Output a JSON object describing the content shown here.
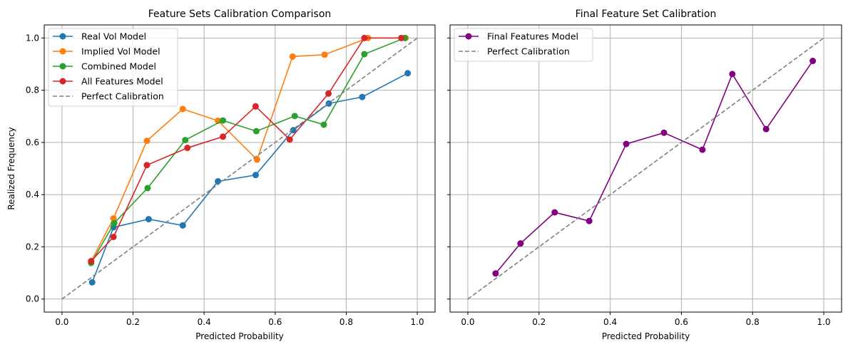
{
  "chart_data": [
    {
      "type": "line",
      "title": "Feature Sets Calibration Comparison",
      "xlabel": "Predicted Probability",
      "ylabel": "Realized Frequency",
      "xlim": [
        -0.05,
        1.05
      ],
      "ylim": [
        -0.05,
        1.05
      ],
      "xticks": [
        "0.0",
        "0.2",
        "0.4",
        "0.6",
        "0.8",
        "1.0"
      ],
      "yticks": [
        "0.0",
        "0.2",
        "0.4",
        "0.6",
        "0.8",
        "1.0"
      ],
      "grid": true,
      "legend_position": "top-left",
      "series": [
        {
          "name": "Real Vol Model",
          "color": "#1f77b4",
          "marker": "circle",
          "x": [
            0.085,
            0.145,
            0.244,
            0.34,
            0.439,
            0.545,
            0.651,
            0.751,
            0.845,
            0.973
          ],
          "y": [
            0.064,
            0.275,
            0.306,
            0.282,
            0.451,
            0.475,
            0.647,
            0.749,
            0.774,
            0.865
          ]
        },
        {
          "name": "Implied Vol Model",
          "color": "#ff7f0e",
          "marker": "circle",
          "x": [
            0.082,
            0.145,
            0.239,
            0.34,
            0.439,
            0.549,
            0.649,
            0.739,
            0.861,
            0.967
          ],
          "y": [
            0.145,
            0.309,
            0.606,
            0.728,
            0.683,
            0.534,
            0.929,
            0.936,
            1.0,
            1.0
          ]
        },
        {
          "name": "Combined Model",
          "color": "#2ca02c",
          "marker": "circle",
          "x": [
            0.082,
            0.147,
            0.241,
            0.347,
            0.453,
            0.547,
            0.655,
            0.737,
            0.851,
            0.965
          ],
          "y": [
            0.138,
            0.291,
            0.425,
            0.609,
            0.684,
            0.643,
            0.701,
            0.668,
            0.938,
            1.0
          ]
        },
        {
          "name": "All Features Model",
          "color": "#d62728",
          "marker": "circle",
          "x": [
            0.082,
            0.145,
            0.239,
            0.353,
            0.453,
            0.545,
            0.641,
            0.75,
            0.851,
            0.955
          ],
          "y": [
            0.145,
            0.238,
            0.513,
            0.579,
            0.622,
            0.738,
            0.611,
            0.787,
            1.0,
            1.0
          ]
        },
        {
          "name": "Perfect Calibration",
          "color": "#808080",
          "style": "dashed",
          "x": [
            0,
            1
          ],
          "y": [
            0,
            1
          ]
        }
      ]
    },
    {
      "type": "line",
      "title": "Final Feature Set Calibration",
      "xlabel": "Predicted Probability",
      "ylabel": "",
      "xlim": [
        -0.05,
        1.05
      ],
      "ylim": [
        -0.05,
        1.05
      ],
      "xticks": [
        "0.0",
        "0.2",
        "0.4",
        "0.6",
        "0.8",
        "1.0"
      ],
      "yticks": [],
      "grid": true,
      "legend_position": "top-left",
      "series": [
        {
          "name": "Final Features Model",
          "color": "#800080",
          "marker": "circle",
          "x": [
            0.078,
            0.148,
            0.244,
            0.341,
            0.445,
            0.551,
            0.659,
            0.743,
            0.838,
            0.969
          ],
          "y": [
            0.098,
            0.213,
            0.332,
            0.299,
            0.594,
            0.637,
            0.572,
            0.862,
            0.651,
            0.912
          ]
        },
        {
          "name": "Perfect Calibration",
          "color": "#808080",
          "style": "dashed",
          "x": [
            0,
            1
          ],
          "y": [
            0,
            1
          ]
        }
      ]
    }
  ]
}
